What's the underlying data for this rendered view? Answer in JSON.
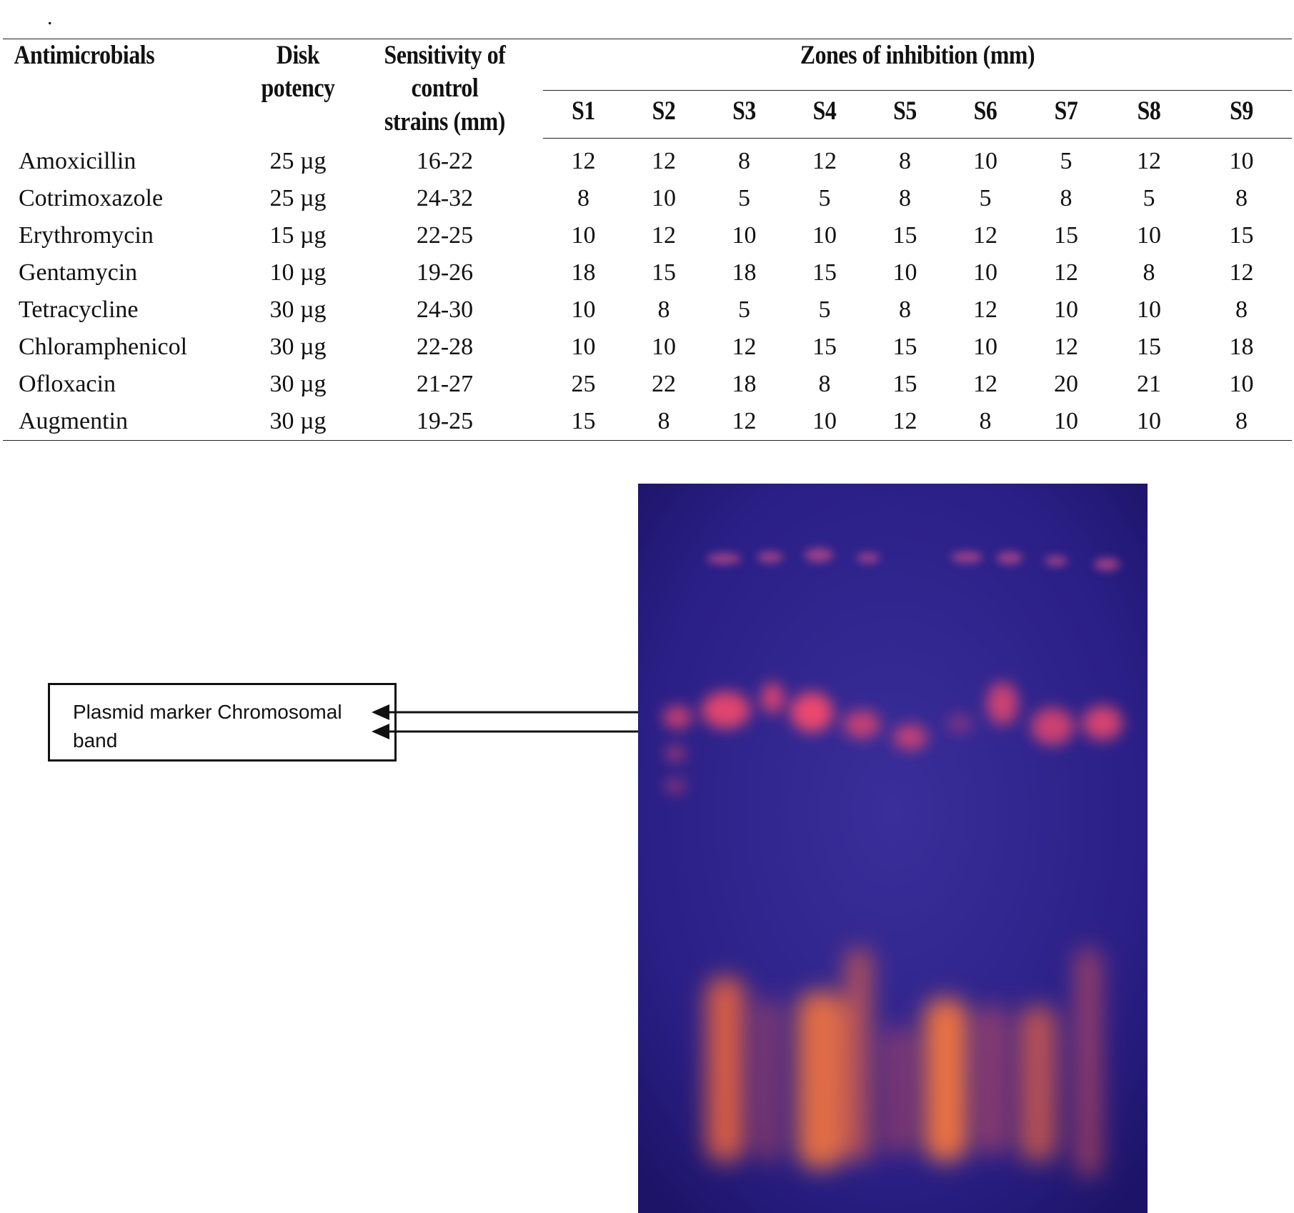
{
  "top_mark": ".",
  "table": {
    "headers": {
      "antimicrobials": "Antimicrobials",
      "disk_potency_line1": "Disk",
      "disk_potency_line2": "potency",
      "sensitivity_line1": "Sensitivity of",
      "sensitivity_line2": "control",
      "sensitivity_line3": "strains (mm)",
      "zones": "Zones of inhibition (mm)",
      "strains": [
        "S1",
        "S2",
        "S3",
        "S4",
        "S5",
        "S6",
        "S7",
        "S8",
        "S9"
      ]
    },
    "rows": [
      {
        "name": "Amoxicillin",
        "potency": "25 µg",
        "sensitivity": "16-22",
        "zones": [
          "12",
          "12",
          "8",
          "12",
          "8",
          "10",
          "5",
          "12",
          "10"
        ]
      },
      {
        "name": "Cotrimoxazole",
        "potency": "25 µg",
        "sensitivity": "24-32",
        "zones": [
          "8",
          "10",
          "5",
          "5",
          "8",
          "5",
          "8",
          "5",
          "8"
        ]
      },
      {
        "name": "Erythromycin",
        "potency": "15 µg",
        "sensitivity": "22-25",
        "zones": [
          "10",
          "12",
          "10",
          "10",
          "15",
          "12",
          "15",
          "10",
          "15"
        ]
      },
      {
        "name": "Gentamycin",
        "potency": "10 µg",
        "sensitivity": "19-26",
        "zones": [
          "18",
          "15",
          "18",
          "15",
          "10",
          "10",
          "12",
          "8",
          "12"
        ]
      },
      {
        "name": "Tetracycline",
        "potency": "30 µg",
        "sensitivity": "24-30",
        "zones": [
          "10",
          "8",
          "5",
          "5",
          "8",
          "12",
          "10",
          "10",
          "8"
        ]
      },
      {
        "name": "Chloramphenicol",
        "potency": "30 µg",
        "sensitivity": "22-28",
        "zones": [
          "10",
          "10",
          "12",
          "15",
          "15",
          "10",
          "12",
          "15",
          "18"
        ]
      },
      {
        "name": "Ofloxacin",
        "potency": "30 µg",
        "sensitivity": "21-27",
        "zones": [
          "25",
          "22",
          "18",
          "8",
          "15",
          "12",
          "20",
          "21",
          "10"
        ]
      },
      {
        "name": "Augmentin",
        "potency": "30 µg",
        "sensitivity": "19-25",
        "zones": [
          "15",
          "8",
          "12",
          "10",
          "12",
          "8",
          "10",
          "10",
          "8"
        ]
      }
    ]
  },
  "callout": {
    "text_line1": "Plasmid marker Chromosomal",
    "text_line2": "band"
  },
  "colors": {
    "gel_background": "#2a1f86",
    "band_color": "#ff5a4a"
  }
}
